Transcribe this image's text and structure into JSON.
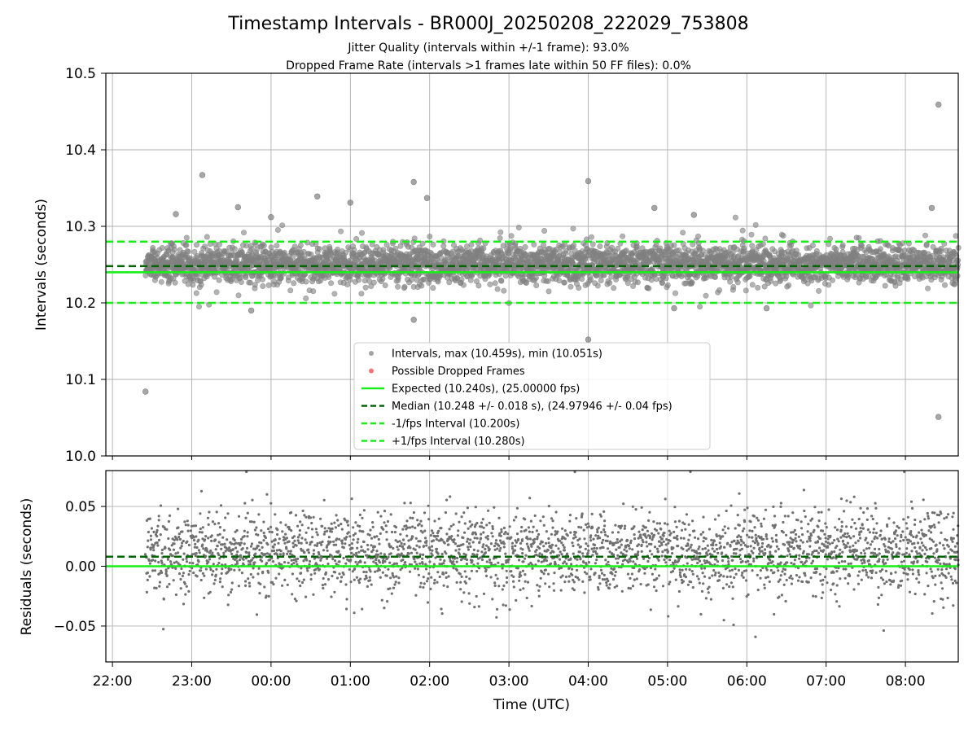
{
  "title": "Timestamp Intervals - BR000J_20250208_222029_753808",
  "subtitle_1": "Jitter Quality (intervals within +/-1 frame): 93.0%",
  "subtitle_2": "Dropped Frame Rate (intervals >1 frames late within 50 FF files): 0.0%",
  "colors": {
    "points": "#808080",
    "dropped": "#ff4d4d",
    "expected": "#1aee1a",
    "median": "#006400",
    "fps_bounds": "#1aee1a",
    "grid": "#b0b0b0"
  },
  "chart_data": [
    {
      "type": "scatter",
      "name": "intervals",
      "ylabel": "Intervals (seconds)",
      "ylim": [
        10.0,
        10.5
      ],
      "yticks": [
        "10.0",
        "10.1",
        "10.2",
        "10.3",
        "10.4",
        "10.5"
      ],
      "xlim": [
        "21:55",
        "08:40"
      ],
      "xticks": [
        "22:00",
        "23:00",
        "00:00",
        "01:00",
        "02:00",
        "03:00",
        "04:00",
        "05:00",
        "06:00",
        "07:00",
        "08:00"
      ],
      "grid": true,
      "data_start": "22:25",
      "data_end": "08:40",
      "bulk_range": [
        10.22,
        10.28
      ],
      "approx_points": 3600,
      "outliers": [
        {
          "x": "22:25",
          "y": 10.084
        },
        {
          "x": "23:08",
          "y": 10.367
        },
        {
          "x": "01:48",
          "y": 10.358
        },
        {
          "x": "01:48",
          "y": 10.178
        },
        {
          "x": "04:00",
          "y": 10.359
        },
        {
          "x": "04:00",
          "y": 10.152
        },
        {
          "x": "00:35",
          "y": 10.339
        },
        {
          "x": "01:58",
          "y": 10.337
        },
        {
          "x": "08:25",
          "y": 10.459
        },
        {
          "x": "08:25",
          "y": 10.051
        },
        {
          "x": "08:20",
          "y": 10.324
        },
        {
          "x": "22:48",
          "y": 10.316
        },
        {
          "x": "23:35",
          "y": 10.325
        },
        {
          "x": "00:00",
          "y": 10.312
        },
        {
          "x": "01:00",
          "y": 10.331
        },
        {
          "x": "04:50",
          "y": 10.324
        },
        {
          "x": "05:20",
          "y": 10.315
        },
        {
          "x": "23:45",
          "y": 10.19
        },
        {
          "x": "05:05",
          "y": 10.193
        },
        {
          "x": "06:15",
          "y": 10.193
        }
      ],
      "lines": [
        {
          "name": "expected",
          "y": 10.24,
          "style": "solid"
        },
        {
          "name": "median",
          "y": 10.248,
          "style": "dashed"
        },
        {
          "name": "minus_fps",
          "y": 10.2,
          "style": "dashed"
        },
        {
          "name": "plus_fps",
          "y": 10.28,
          "style": "dashed"
        }
      ],
      "legend": {
        "position": "lower center",
        "entries": [
          {
            "label": "Intervals, max (10.459s), min (10.051s)",
            "marker": "point",
            "color": "#999999"
          },
          {
            "label": "Possible Dropped Frames",
            "marker": "point",
            "color": "#ff6666"
          },
          {
            "label": "Expected (10.240s), (25.00000 fps)",
            "marker": "solid",
            "color": "#1aee1a"
          },
          {
            "label": "Median (10.248 +/- 0.018 s), (24.97946 +/- 0.04 fps)",
            "marker": "dashed",
            "color": "#006400"
          },
          {
            "label": "-1/fps Interval (10.200s)",
            "marker": "dashed",
            "color": "#1aee1a"
          },
          {
            "label": "+1/fps Interval (10.280s)",
            "marker": "dashed",
            "color": "#1aee1a"
          }
        ]
      }
    },
    {
      "type": "scatter",
      "name": "residuals",
      "ylabel": "Residuals (seconds)",
      "xlabel": "Time (UTC)",
      "ylim": [
        -0.08,
        0.08
      ],
      "yticks": [
        "−0.05",
        "0.00",
        "0.05"
      ],
      "ytick_values": [
        -0.05,
        0.0,
        0.05
      ],
      "xlim": [
        "21:55",
        "08:40"
      ],
      "xticks": [
        "22:00",
        "23:00",
        "00:00",
        "01:00",
        "02:00",
        "03:00",
        "04:00",
        "05:00",
        "06:00",
        "07:00",
        "08:00"
      ],
      "grid": true,
      "bulk_range": [
        -0.03,
        0.05
      ],
      "approx_points": 3000,
      "lines": [
        {
          "name": "zero",
          "y": 0.0,
          "style": "solid"
        },
        {
          "name": "median_offset",
          "y": 0.008,
          "style": "dashed"
        }
      ]
    }
  ]
}
